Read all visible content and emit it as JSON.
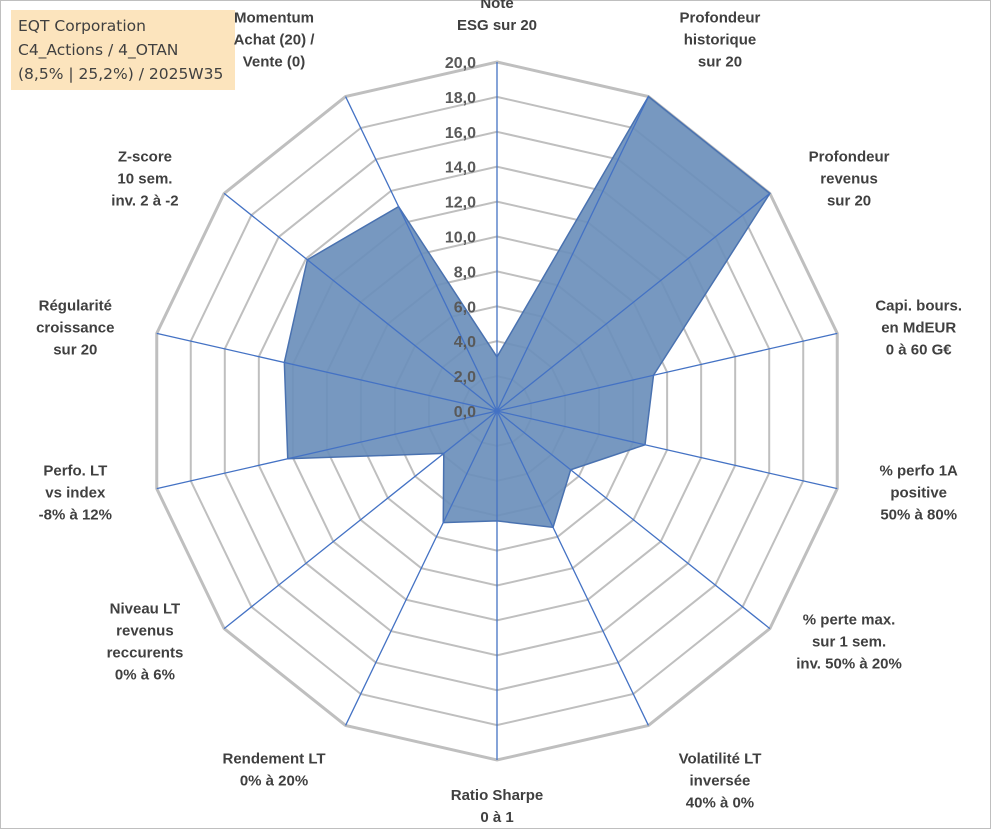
{
  "info_box": {
    "line1": "EQT Corporation",
    "line2": "C4_Actions / 4_OTAN",
    "line3": "(8,5% | 25,2%) / 2025W35"
  },
  "colors": {
    "fill": "#6b8fbb",
    "stroke": "#4a72b0",
    "spoke": "#4472c4",
    "grid": "#bfbfbf",
    "info_bg": "#fce4bd"
  },
  "chart_data": {
    "type": "radar",
    "r_range": [
      0,
      20
    ],
    "ticks": [
      "0,0",
      "2,0",
      "4,0",
      "6,0",
      "8,0",
      "10,0",
      "12,0",
      "14,0",
      "16,0",
      "18,0",
      "20,0"
    ],
    "grid": true,
    "categories": [
      [
        "Note",
        "ESG sur 20"
      ],
      [
        "Profondeur",
        "historique",
        "sur 20"
      ],
      [
        "Profondeur",
        "revenus",
        "sur 20"
      ],
      [
        "Capi. bours.",
        "en MdEUR",
        "0 à 60 G€"
      ],
      [
        "% perfo 1A",
        "positive",
        "50% à 80%"
      ],
      [
        "% perte max.",
        "sur 1 sem.",
        "inv. 50% à 20%"
      ],
      [
        "Volatilité LT",
        "inversée",
        "40% à 0%"
      ],
      [
        "Ratio Sharpe",
        "0 à 1"
      ],
      [
        "Rendement LT",
        "0% à 20%"
      ],
      [
        "Niveau LT",
        "revenus",
        "reccurents",
        "0% à 6%"
      ],
      [
        "Perfo. LT",
        "vs index",
        "-8% à 12%"
      ],
      [
        "Régularité",
        "croissance",
        "sur 20"
      ],
      [
        "Z-score",
        "10 sem.",
        "inv. 2 à -2"
      ],
      [
        "Momentum",
        "Achat (20) /",
        "Vente (0)"
      ]
    ],
    "values": [
      3.1,
      20.0,
      20.0,
      9.2,
      8.7,
      5.4,
      7.4,
      6.3,
      7.1,
      3.9,
      12.3,
      12.5,
      13.9,
      13.0
    ]
  }
}
